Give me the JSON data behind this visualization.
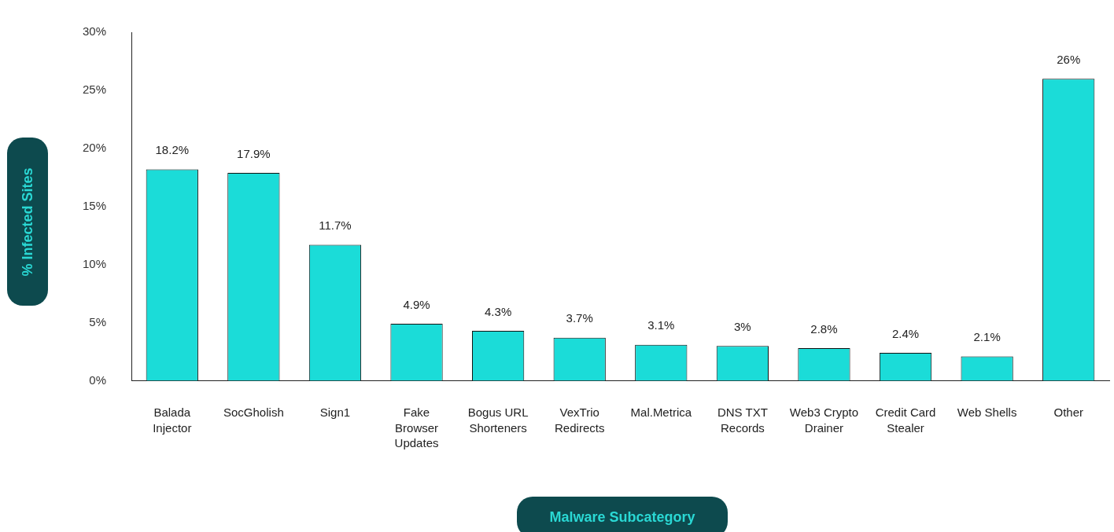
{
  "chart_data": {
    "type": "bar",
    "xlabel": "Malware Subcategory",
    "ylabel": "% Infected Sites",
    "categories": [
      "Balada Injector",
      "SocGholish",
      "Sign1",
      "Fake Browser Updates",
      "Bogus URL Shorteners",
      "VexTrio Redirects",
      "Mal.Metrica",
      "DNS TXT Records",
      "Web3 Crypto Drainer",
      "Credit Card Stealer",
      "Web Shells",
      "Other"
    ],
    "values": [
      18.2,
      17.9,
      11.7,
      4.9,
      4.3,
      3.7,
      3.1,
      3,
      2.8,
      2.4,
      2.1,
      26
    ],
    "value_labels": [
      "18.2%",
      "17.9%",
      "11.7%",
      "4.9%",
      "4.3%",
      "3.7%",
      "3.1%",
      "3%",
      "2.8%",
      "2.4%",
      "2.1%",
      "26%"
    ],
    "color": "#1bdcd8",
    "ylim": [
      0,
      30
    ],
    "yticks": [
      {
        "value": 0,
        "label": "0%"
      },
      {
        "value": 5,
        "label": "5%"
      },
      {
        "value": 10,
        "label": "10%"
      },
      {
        "value": 15,
        "label": "15%"
      },
      {
        "value": 20,
        "label": "20%"
      },
      {
        "value": 25,
        "label": "25%"
      },
      {
        "value": 30,
        "label": "30%"
      }
    ],
    "grid": false,
    "legend": false
  }
}
